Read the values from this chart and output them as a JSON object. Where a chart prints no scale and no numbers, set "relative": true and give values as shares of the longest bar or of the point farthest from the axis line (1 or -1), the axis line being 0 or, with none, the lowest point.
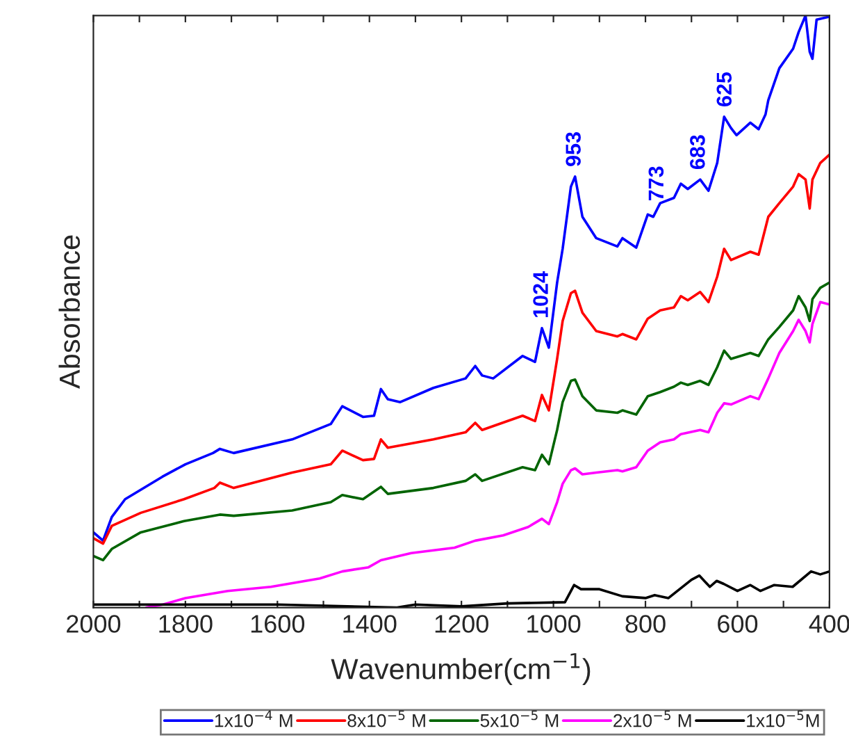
{
  "chart_data": {
    "type": "line",
    "relative": true,
    "xlabel": "Wavenumber(cm$^{−1}$)",
    "ylabel": "Absorbance",
    "xlim": [
      2000,
      400
    ],
    "xticks": [
      2000,
      {
        "value": 1900,
        "label": null
      },
      1800,
      {
        "value": 1700,
        "label": null
      },
      1600,
      {
        "value": 1500,
        "label": null
      },
      1400,
      {
        "value": 1300,
        "label": null
      },
      1200,
      {
        "value": 1100,
        "label": null
      },
      1000,
      {
        "value": 900,
        "label": null
      },
      800,
      {
        "value": 700,
        "label": null
      },
      600,
      {
        "value": 500,
        "label": null
      },
      400
    ],
    "grid": false,
    "legend": "bottom",
    "marker": "none",
    "line_style": "solid",
    "series": [
      {
        "name": "1x10$^{−4}$ M",
        "color": "#0000ff",
        "x": [
          2000,
          1979,
          1960,
          1931,
          1850,
          1800,
          1740,
          1725,
          1695,
          1568,
          1484,
          1459,
          1414,
          1390,
          1375,
          1360,
          1333,
          1261,
          1191,
          1170,
          1155,
          1131,
          1067,
          1040,
          1025,
          1010,
          992,
          980,
          962,
          953,
          937,
          907,
          861,
          850,
          820,
          795,
          783,
          768,
          738,
          723,
          708,
          681,
          663,
          644,
          629,
          614,
          602,
          572,
          554,
          539,
          533,
          509,
          479,
          467,
          452,
          443,
          437,
          428,
          400
        ],
        "values": [
          0.127,
          0.113,
          0.153,
          0.183,
          0.221,
          0.242,
          0.261,
          0.268,
          0.261,
          0.284,
          0.31,
          0.34,
          0.322,
          0.324,
          0.369,
          0.352,
          0.347,
          0.371,
          0.387,
          0.408,
          0.392,
          0.387,
          0.425,
          0.415,
          0.472,
          0.439,
          0.549,
          0.606,
          0.711,
          0.728,
          0.66,
          0.624,
          0.61,
          0.624,
          0.608,
          0.664,
          0.66,
          0.683,
          0.692,
          0.716,
          0.707,
          0.723,
          0.704,
          0.751,
          0.829,
          0.81,
          0.798,
          0.819,
          0.808,
          0.833,
          0.857,
          0.911,
          0.944,
          0.972,
          1.0,
          0.939,
          0.927,
          0.993,
          0.998
        ]
      },
      {
        "name": "8x10$^{−5}$ M",
        "color": "#ff0000",
        "x": [
          2000,
          1979,
          1960,
          1897,
          1803,
          1737,
          1725,
          1695,
          1568,
          1484,
          1459,
          1414,
          1390,
          1375,
          1360,
          1261,
          1191,
          1170,
          1155,
          1067,
          1040,
          1025,
          1010,
          992,
          980,
          962,
          953,
          937,
          907,
          861,
          850,
          820,
          795,
          768,
          738,
          723,
          708,
          681,
          663,
          644,
          629,
          614,
          572,
          554,
          533,
          509,
          479,
          467,
          452,
          443,
          437,
          420,
          400
        ],
        "values": [
          0.117,
          0.108,
          0.138,
          0.16,
          0.183,
          0.202,
          0.211,
          0.202,
          0.228,
          0.242,
          0.265,
          0.249,
          0.251,
          0.284,
          0.27,
          0.284,
          0.296,
          0.312,
          0.3,
          0.324,
          0.315,
          0.359,
          0.333,
          0.42,
          0.484,
          0.531,
          0.535,
          0.498,
          0.467,
          0.458,
          0.462,
          0.453,
          0.488,
          0.502,
          0.507,
          0.526,
          0.519,
          0.533,
          0.516,
          0.559,
          0.606,
          0.587,
          0.601,
          0.596,
          0.66,
          0.683,
          0.711,
          0.732,
          0.723,
          0.674,
          0.723,
          0.751,
          0.765
        ]
      },
      {
        "name": "5x10$^{−5}$ M",
        "color": "#006400",
        "x": [
          2000,
          1979,
          1960,
          1897,
          1803,
          1725,
          1695,
          1568,
          1484,
          1459,
          1414,
          1375,
          1360,
          1261,
          1191,
          1170,
          1155,
          1067,
          1040,
          1025,
          1010,
          992,
          980,
          962,
          953,
          937,
          907,
          861,
          850,
          820,
          795,
          768,
          738,
          723,
          708,
          681,
          663,
          644,
          629,
          614,
          572,
          554,
          533,
          509,
          479,
          467,
          452,
          443,
          437,
          420,
          400
        ],
        "values": [
          0.087,
          0.08,
          0.099,
          0.127,
          0.146,
          0.157,
          0.155,
          0.164,
          0.178,
          0.19,
          0.183,
          0.204,
          0.192,
          0.202,
          0.214,
          0.225,
          0.214,
          0.237,
          0.232,
          0.258,
          0.242,
          0.3,
          0.347,
          0.383,
          0.385,
          0.357,
          0.333,
          0.329,
          0.333,
          0.326,
          0.357,
          0.364,
          0.373,
          0.38,
          0.376,
          0.383,
          0.376,
          0.406,
          0.434,
          0.42,
          0.43,
          0.425,
          0.453,
          0.474,
          0.502,
          0.526,
          0.507,
          0.484,
          0.521,
          0.54,
          0.549
        ]
      },
      {
        "name": "2x10$^{−5}$ M",
        "color": "#ff00ff",
        "x": [
          1885,
          1849,
          1800,
          1708,
          1614,
          1508,
          1459,
          1402,
          1375,
          1309,
          1215,
          1170,
          1109,
          1055,
          1025,
          1010,
          992,
          980,
          962,
          953,
          937,
          907,
          861,
          850,
          820,
          795,
          768,
          738,
          723,
          681,
          663,
          644,
          629,
          614,
          572,
          554,
          533,
          509,
          479,
          467,
          452,
          443,
          437,
          420,
          400
        ],
        "values": [
          0.0,
          0.005,
          0.016,
          0.028,
          0.035,
          0.049,
          0.061,
          0.068,
          0.08,
          0.092,
          0.101,
          0.113,
          0.122,
          0.136,
          0.15,
          0.141,
          0.178,
          0.209,
          0.232,
          0.235,
          0.225,
          0.228,
          0.232,
          0.23,
          0.237,
          0.265,
          0.279,
          0.284,
          0.293,
          0.3,
          0.296,
          0.329,
          0.345,
          0.343,
          0.357,
          0.352,
          0.387,
          0.43,
          0.467,
          0.486,
          0.467,
          0.448,
          0.479,
          0.516,
          0.512
        ]
      },
      {
        "name": "1x10$^{−5}$M",
        "color": "#000000",
        "x": [
          2000,
          1600,
          1340,
          1300,
          1200,
          1100,
          975,
          955,
          940,
          900,
          850,
          800,
          780,
          750,
          700,
          683,
          660,
          645,
          630,
          600,
          572,
          550,
          520,
          480,
          440,
          420,
          400
        ],
        "values": [
          0.005,
          0.005,
          0.0,
          0.005,
          0.002,
          0.007,
          0.009,
          0.038,
          0.031,
          0.031,
          0.019,
          0.016,
          0.021,
          0.016,
          0.047,
          0.054,
          0.035,
          0.045,
          0.04,
          0.028,
          0.038,
          0.028,
          0.038,
          0.035,
          0.061,
          0.056,
          0.061
        ]
      }
    ],
    "annotations": [
      {
        "text": "1024",
        "x": 1024,
        "y": 0.472
      },
      {
        "text": "953",
        "x": 953,
        "y": 0.728
      },
      {
        "text": "773",
        "x": 773,
        "y": 0.67
      },
      {
        "text": "683",
        "x": 683,
        "y": 0.723
      },
      {
        "text": "625",
        "x": 625,
        "y": 0.829
      }
    ]
  }
}
